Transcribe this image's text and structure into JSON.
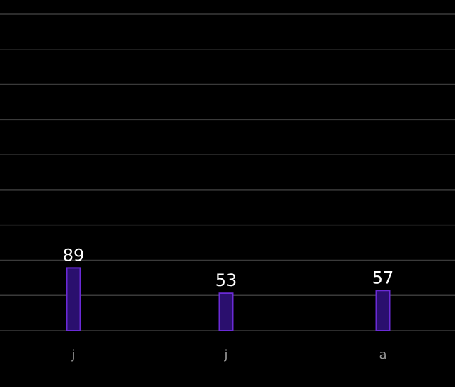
{
  "chart_data": {
    "type": "bar",
    "categories": [
      "j",
      "j",
      "a"
    ],
    "values": [
      89,
      53,
      57
    ],
    "color": "#6a2ad6",
    "ylim": [
      0,
      450
    ],
    "yticks": [
      0,
      50,
      100,
      150,
      200,
      250,
      300,
      350,
      400,
      450
    ],
    "grid": true
  }
}
